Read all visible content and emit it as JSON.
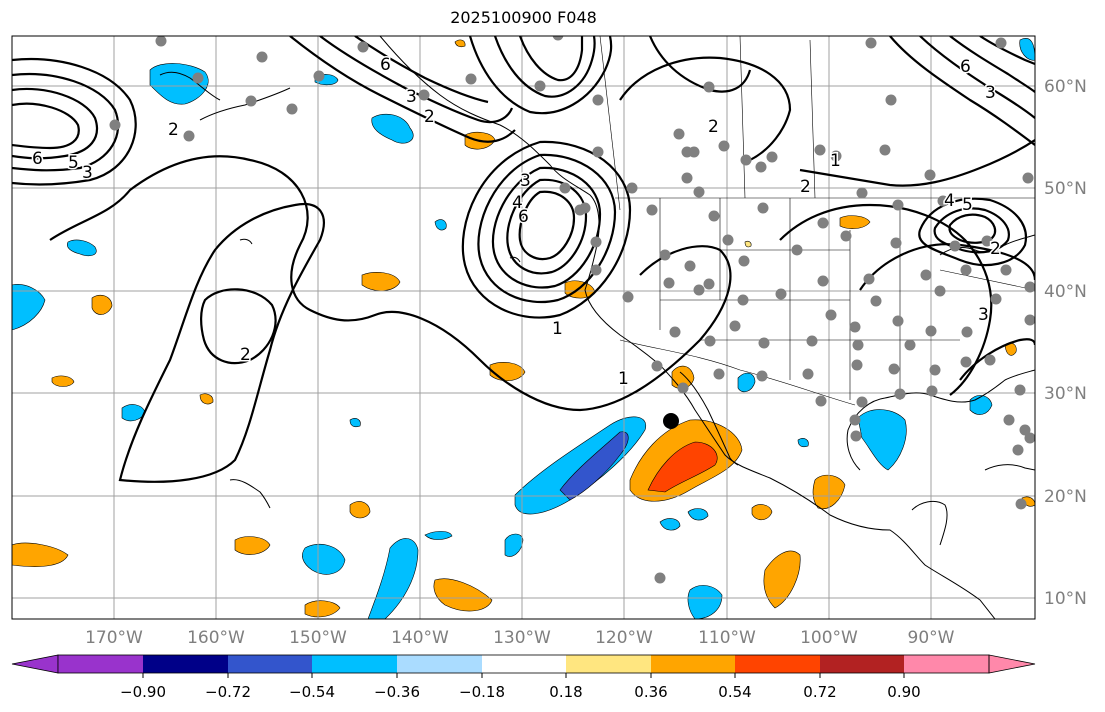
{
  "title": "2025100900 F048",
  "colors": {
    "ocean": "#ffffff",
    "grid": "#a0a0a0",
    "coast": "#000000",
    "contour": "#000000",
    "station": "#808080",
    "tick_label": "#7f7f7f"
  },
  "lon_labels": [
    "170°W",
    "160°W",
    "150°W",
    "140°W",
    "130°W",
    "120°W",
    "110°W",
    "100°W",
    "90°W"
  ],
  "lat_labels": [
    "60°N",
    "50°N",
    "40°N",
    "30°N",
    "20°N",
    "10°N"
  ],
  "contour_labels": [
    "6",
    "5",
    "4",
    "3",
    "2",
    "1"
  ],
  "colorbar": {
    "ticks": [
      "−0.90",
      "−0.72",
      "−0.54",
      "−0.36",
      "−0.18",
      "0.18",
      "0.36",
      "0.54",
      "0.72",
      "0.90"
    ],
    "colors": [
      "#9933cc",
      "#000088",
      "#3355cc",
      "#00bfff",
      "#aadcff",
      "#ffffff",
      "#ffe680",
      "#ffa500",
      "#ff4400",
      "#b22222",
      "#ff88aa"
    ]
  }
}
